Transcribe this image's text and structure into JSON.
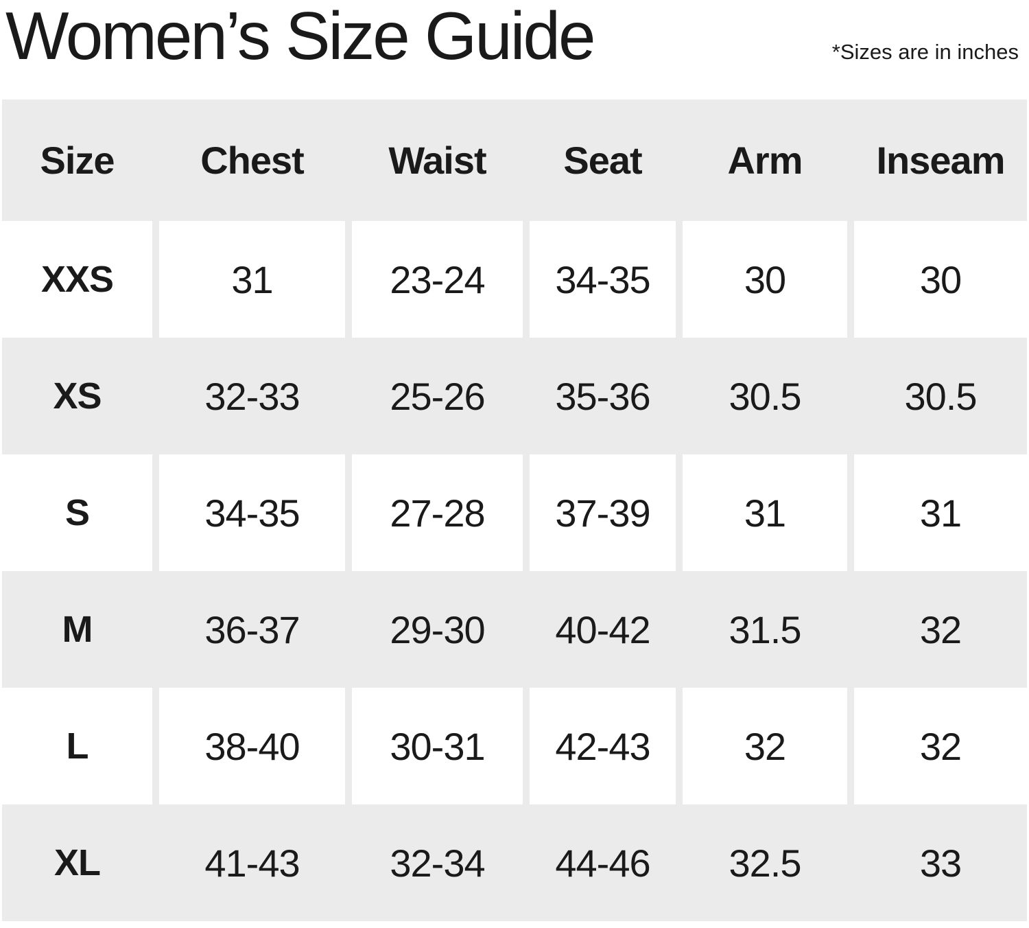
{
  "header": {
    "title": "Women’s Size Guide",
    "note": "*Sizes are in inches"
  },
  "chart_data": {
    "type": "table",
    "title": "Women’s Size Guide",
    "note": "*Sizes are in inches",
    "units": "inches",
    "columns": [
      "Size",
      "Chest",
      "Waist",
      "Seat",
      "Arm",
      "Inseam"
    ],
    "rows": [
      [
        "XXS",
        "31",
        "23-24",
        "34-35",
        "30",
        "30"
      ],
      [
        "XS",
        "32-33",
        "25-26",
        "35-36",
        "30.5",
        "30.5"
      ],
      [
        "S",
        "34-35",
        "27-28",
        "37-39",
        "31",
        "31"
      ],
      [
        "M",
        "36-37",
        "29-30",
        "40-42",
        "31.5",
        "32"
      ],
      [
        "L",
        "38-40",
        "30-31",
        "42-43",
        "32",
        "32"
      ],
      [
        "XL",
        "41-43",
        "32-34",
        "44-46",
        "32.5",
        "33"
      ]
    ],
    "layout": {
      "striped": true,
      "stripe_color": "#ebebeb",
      "white_row_divider_color": "#ebebeb",
      "header_background": "#ebebeb",
      "text_color": "#1a1a1a"
    }
  },
  "colors": {
    "row_gray": "#ebebeb",
    "row_white": "#ffffff",
    "text": "#1a1a1a",
    "background": "#ffffff"
  }
}
